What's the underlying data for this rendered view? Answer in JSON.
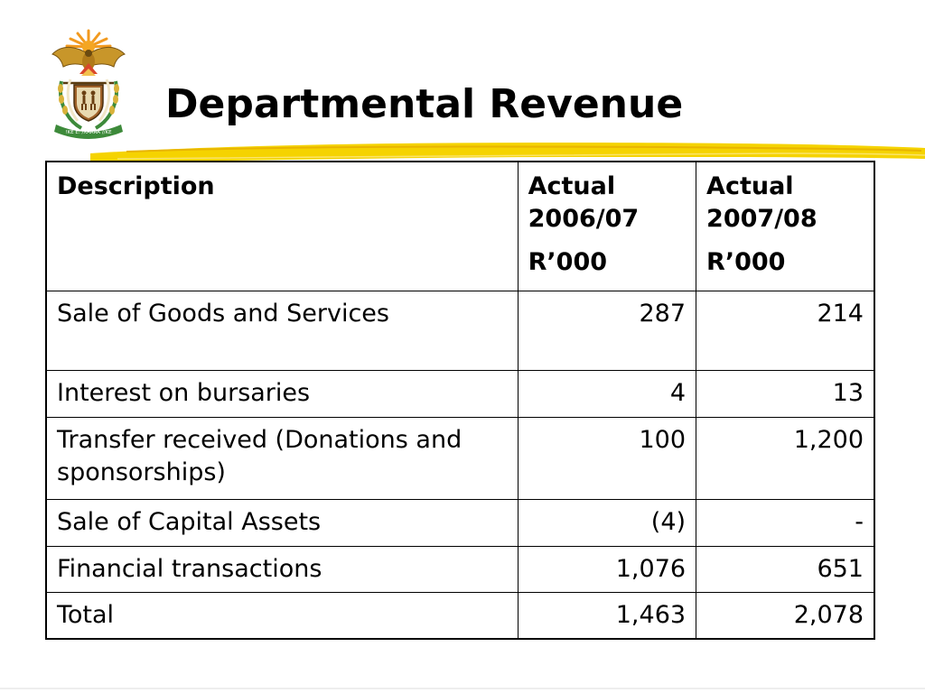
{
  "slide": {
    "title": "Departmental Revenue",
    "accent_color": "#f5d300",
    "logo": {
      "icon": "coat-of-arms-icon",
      "motto": "!KE E: /XARRA //KE"
    }
  },
  "table": {
    "headers": [
      {
        "line1": "Description",
        "line2": "",
        "unit": ""
      },
      {
        "line1": "Actual",
        "line2": "2006/07",
        "unit": "R’000"
      },
      {
        "line1": "Actual",
        "line2": "2007/08",
        "unit": "R’000"
      }
    ],
    "rows": [
      {
        "description": "Sale of Goods and Services",
        "actual_2006_07": "287",
        "actual_2007_08": "214"
      },
      {
        "description": "Interest on bursaries",
        "actual_2006_07": "4",
        "actual_2007_08": "13"
      },
      {
        "description": "Transfer received (Donations and sponsorships)",
        "actual_2006_07": "100",
        "actual_2007_08": "1,200"
      },
      {
        "description": "Sale of Capital Assets",
        "actual_2006_07": "(4)",
        "actual_2007_08": "-"
      },
      {
        "description": "Financial transactions",
        "actual_2006_07": "1,076",
        "actual_2007_08": "651"
      },
      {
        "description": "Total",
        "actual_2006_07": "1,463",
        "actual_2007_08": "2,078"
      }
    ]
  }
}
